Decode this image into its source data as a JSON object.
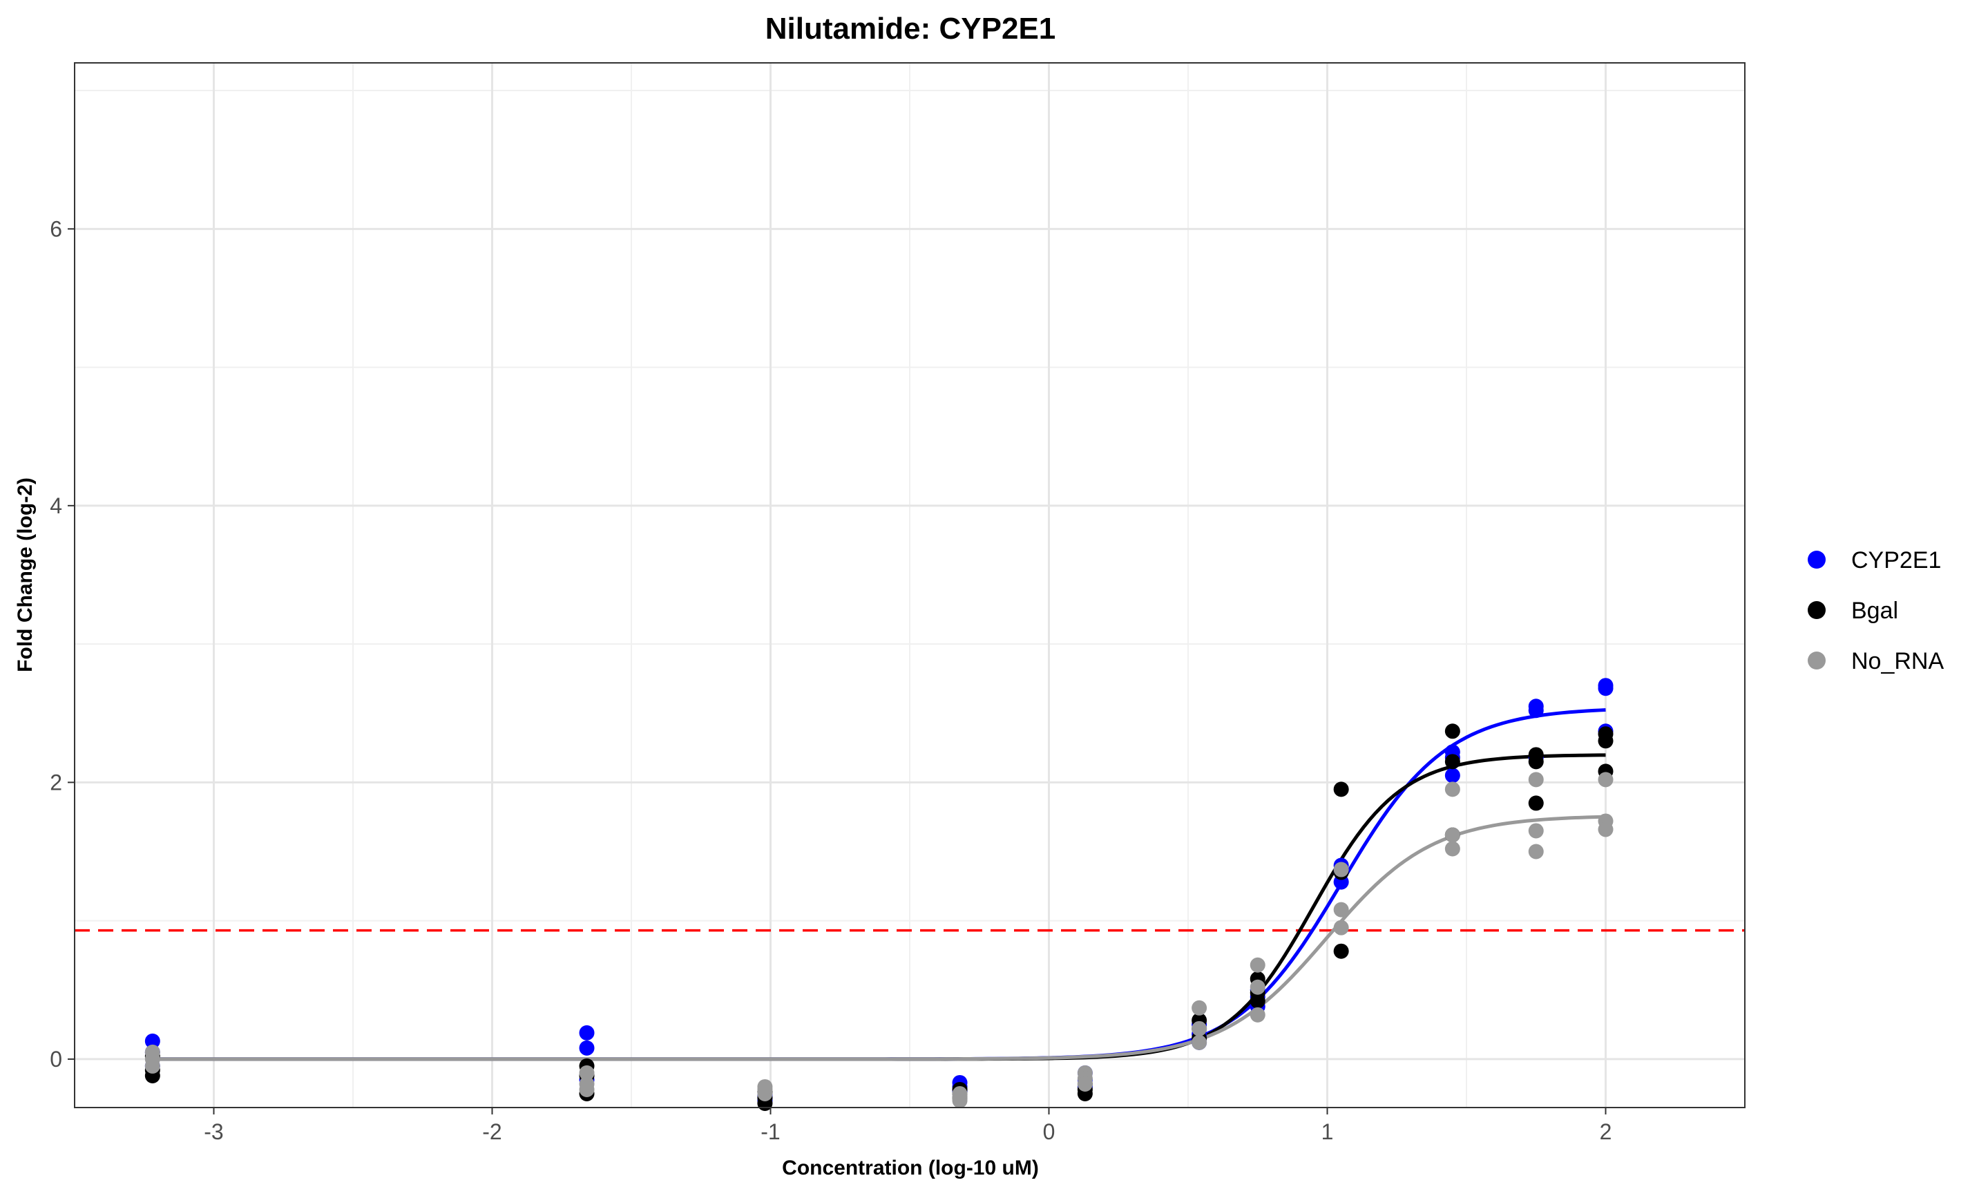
{
  "chart_data": {
    "type": "scatter",
    "title": "Nilutamide: CYP2E1",
    "xlabel": "Concentration (log-10 uM)",
    "ylabel": "Fold Change (log-2)",
    "xlim": [
      -3.5,
      2.5
    ],
    "ylim": [
      -0.35,
      7.2
    ],
    "xticks": [
      -3,
      -2,
      -1,
      0,
      1,
      2
    ],
    "xtick_labels": [
      "-3",
      "-2",
      "-1",
      "0",
      "1",
      "2"
    ],
    "yticks": [
      0,
      2,
      4,
      6
    ],
    "ytick_labels": [
      "0",
      "2",
      "4",
      "6"
    ],
    "grid": true,
    "legend_position": "right",
    "threshold": {
      "y": 0.93,
      "color": "#ff0000",
      "style": "dashed"
    },
    "series": [
      {
        "name": "CYP2E1",
        "color": "#0000ff",
        "points": [
          [
            -3.22,
            0.13
          ],
          [
            -3.22,
            0.05
          ],
          [
            -3.22,
            -0.05
          ],
          [
            -1.66,
            0.19
          ],
          [
            -1.66,
            0.08
          ],
          [
            -1.66,
            -0.15
          ],
          [
            -1.02,
            -0.28
          ],
          [
            -1.02,
            -0.3
          ],
          [
            -1.02,
            -0.26
          ],
          [
            -0.32,
            -0.17
          ],
          [
            -0.32,
            -0.2
          ],
          [
            -0.32,
            -0.23
          ],
          [
            0.13,
            -0.15
          ],
          [
            0.13,
            -0.2
          ],
          [
            0.13,
            -0.1
          ],
          [
            0.54,
            0.25
          ],
          [
            0.54,
            0.18
          ],
          [
            0.54,
            0.12
          ],
          [
            0.75,
            0.45
          ],
          [
            0.75,
            0.5
          ],
          [
            0.75,
            0.38
          ],
          [
            1.05,
            1.4
          ],
          [
            1.05,
            1.28
          ],
          [
            1.05,
            1.35
          ],
          [
            1.45,
            2.22
          ],
          [
            1.45,
            2.05
          ],
          [
            1.45,
            2.18
          ],
          [
            1.75,
            2.55
          ],
          [
            1.75,
            2.52
          ],
          [
            1.75,
            2.18
          ],
          [
            2.0,
            2.7
          ],
          [
            2.0,
            2.68
          ],
          [
            2.0,
            2.37
          ]
        ],
        "fit": {
          "bottom": 0,
          "top": 2.54,
          "ec50": 1.05,
          "hill": 2.3
        }
      },
      {
        "name": "Bgal",
        "color": "#000000",
        "points": [
          [
            -3.22,
            -0.12
          ],
          [
            -3.22,
            -0.08
          ],
          [
            -3.22,
            0.02
          ],
          [
            -1.66,
            -0.25
          ],
          [
            -1.66,
            -0.05
          ],
          [
            -1.66,
            -0.12
          ],
          [
            -1.02,
            -0.28
          ],
          [
            -1.02,
            -0.24
          ],
          [
            -1.02,
            -0.32
          ],
          [
            -0.32,
            -0.25
          ],
          [
            -0.32,
            -0.28
          ],
          [
            -0.32,
            -0.22
          ],
          [
            0.13,
            -0.22
          ],
          [
            0.13,
            -0.18
          ],
          [
            0.13,
            -0.25
          ],
          [
            0.54,
            0.28
          ],
          [
            0.54,
            0.22
          ],
          [
            0.54,
            0.15
          ],
          [
            0.75,
            0.58
          ],
          [
            0.75,
            0.42
          ],
          [
            0.75,
            0.48
          ],
          [
            1.05,
            1.95
          ],
          [
            1.05,
            1.35
          ],
          [
            1.05,
            0.78
          ],
          [
            1.45,
            2.37
          ],
          [
            1.45,
            2.15
          ],
          [
            1.45,
            1.62
          ],
          [
            1.75,
            2.2
          ],
          [
            1.75,
            2.15
          ],
          [
            1.75,
            1.85
          ],
          [
            2.0,
            2.35
          ],
          [
            2.0,
            2.3
          ],
          [
            2.0,
            2.08
          ]
        ],
        "fit": {
          "bottom": 0,
          "top": 2.2,
          "ec50": 0.95,
          "hill": 2.8
        }
      },
      {
        "name": "No_RNA",
        "color": "#999999",
        "points": [
          [
            -3.22,
            0.05
          ],
          [
            -3.22,
            -0.05
          ],
          [
            -3.22,
            0.0
          ],
          [
            -1.66,
            -0.1
          ],
          [
            -1.66,
            -0.18
          ],
          [
            -1.66,
            -0.22
          ],
          [
            -1.02,
            -0.22
          ],
          [
            -1.02,
            -0.25
          ],
          [
            -1.02,
            -0.2
          ],
          [
            -0.32,
            -0.28
          ],
          [
            -0.32,
            -0.3
          ],
          [
            -0.32,
            -0.25
          ],
          [
            0.13,
            -0.1
          ],
          [
            0.13,
            -0.14
          ],
          [
            0.13,
            -0.18
          ],
          [
            0.54,
            0.37
          ],
          [
            0.54,
            0.12
          ],
          [
            0.54,
            0.22
          ],
          [
            0.75,
            0.68
          ],
          [
            0.75,
            0.32
          ],
          [
            0.75,
            0.52
          ],
          [
            1.05,
            1.37
          ],
          [
            1.05,
            1.08
          ],
          [
            1.05,
            0.95
          ],
          [
            1.45,
            1.95
          ],
          [
            1.45,
            1.62
          ],
          [
            1.45,
            1.52
          ],
          [
            1.75,
            2.02
          ],
          [
            1.75,
            1.65
          ],
          [
            1.75,
            1.5
          ],
          [
            2.0,
            2.02
          ],
          [
            2.0,
            1.72
          ],
          [
            2.0,
            1.66
          ]
        ],
        "fit": {
          "bottom": 0,
          "top": 1.76,
          "ec50": 1.0,
          "hill": 2.3
        }
      }
    ]
  }
}
